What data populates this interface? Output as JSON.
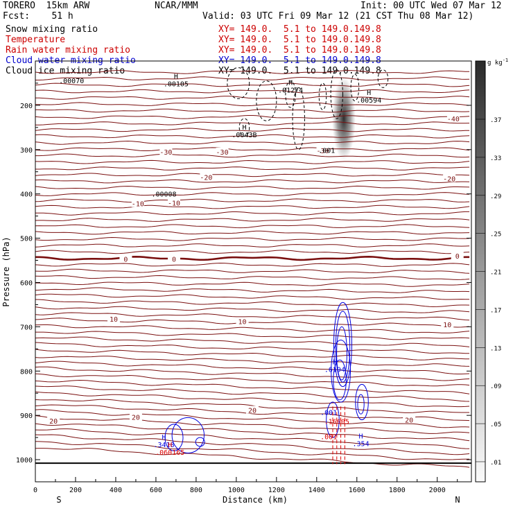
{
  "header": {
    "model": "TORERO  15km ARW",
    "center": "NCAR/MMM",
    "init": "Init: 00 UTC Wed 07 Mar 12",
    "fcst": "Fcst:    51 h",
    "valid": "Valid: 03 UTC Fri 09 Mar 12 (21 CST Thu 08 Mar 12)"
  },
  "legend": [
    {
      "label": "Snow mixing ratio",
      "xy": "",
      "color": "#000000"
    },
    {
      "label": "Temperature",
      "xy": "XY= 149.0.  5.1 to 149.0.149.8",
      "color": "#cc0000"
    },
    {
      "label": "Rain water mixing ratio",
      "xy": "XY= 149.0.  5.1 to 149.0.149.8",
      "color": "#cc0000"
    },
    {
      "label": "Cloud water mixing ratio",
      "xy": "XY= 149.0.  5.1 to 149.0.149.8",
      "color": "#0000cc"
    },
    {
      "label": "Cloud ice mixing ratio",
      "xy": "XY= 149.0.  5.1 to 149.0.149.8",
      "color": "#000000"
    }
  ],
  "legend_first_xy": "XY= 149.0.  5.1 to 149.0.149.8",
  "colors": {
    "temperature": "#7a0f0f",
    "rain": "#dd0000",
    "cloud_water": "#0000dd",
    "cloud_ice": "#000000",
    "snow_shade": "#333333"
  },
  "chart_data": {
    "type": "cross-section contour",
    "xlabel": "Distance (km)",
    "ylabel": "Pressure (hPa)",
    "x_ticks": [
      0,
      200,
      400,
      600,
      800,
      1000,
      1200,
      1400,
      1600,
      1800,
      2000
    ],
    "xlim": [
      0,
      2170
    ],
    "y_ticks": [
      200,
      300,
      400,
      500,
      600,
      700,
      800,
      900,
      1000
    ],
    "ylim": [
      1050,
      100
    ],
    "x_end_labels": {
      "left": "S",
      "right": "N"
    },
    "colorbar": {
      "unit": "g kg",
      "unit_exp": "-1",
      "ticks": [
        ".37",
        ".33",
        ".29",
        ".25",
        ".21",
        ".17",
        ".13",
        ".09",
        ".05",
        ".01"
      ]
    },
    "temperature_contours": [
      {
        "value": -40,
        "label_x": 2080,
        "p": 230
      },
      {
        "value": -30,
        "label_x": 650,
        "p": 305
      },
      {
        "value": -30,
        "label_x": 930,
        "p": 305
      },
      {
        "value": -30,
        "label_x": 1430,
        "p": 302
      },
      {
        "value": -20,
        "label_x": 850,
        "p": 362
      },
      {
        "value": -20,
        "label_x": 2060,
        "p": 365
      },
      {
        "value": -10,
        "label_x": 510,
        "p": 422
      },
      {
        "value": -10,
        "label_x": 690,
        "p": 420
      },
      {
        "value": 0,
        "label_x": 450,
        "p": 547
      },
      {
        "value": 0,
        "label_x": 690,
        "p": 547
      },
      {
        "value": 0,
        "label_x": 2100,
        "p": 540
      },
      {
        "value": 10,
        "label_x": 390,
        "p": 682
      },
      {
        "value": 10,
        "label_x": 1030,
        "p": 688
      },
      {
        "value": 10,
        "label_x": 2050,
        "p": 695
      },
      {
        "value": 20,
        "label_x": 90,
        "p": 912
      },
      {
        "value": 20,
        "label_x": 500,
        "p": 904
      },
      {
        "value": 20,
        "label_x": 1080,
        "p": 888
      },
      {
        "value": 20,
        "label_x": 1860,
        "p": 910
      }
    ],
    "maxima_labels": [
      {
        "field": "cloud_ice",
        "mark": "",
        "value": ".00070",
        "x": 180,
        "p": 136
      },
      {
        "field": "cloud_ice",
        "mark": "H",
        "value": ".00105",
        "x": 700,
        "p": 143
      },
      {
        "field": "cloud_ice",
        "mark": "H",
        "value": ".01274",
        "x": 1270,
        "p": 157
      },
      {
        "field": "cloud_ice",
        "mark": "H",
        "value": ".00594",
        "x": 1660,
        "p": 180
      },
      {
        "field": "cloud_ice",
        "mark": "H",
        "value": ".0043B",
        "x": 1040,
        "p": 258
      },
      {
        "field": "cloud_ice",
        "mark": "",
        "value": ".001",
        "x": 1450,
        "p": 293
      },
      {
        "field": "cloud_ice",
        "mark": "",
        "value": ".00008",
        "x": 640,
        "p": 392
      },
      {
        "field": "cloud_water",
        "mark": "H",
        "value": ".6194",
        "x": 1490,
        "p": 788
      },
      {
        "field": "cloud_water",
        "mark": "",
        "value": ".001",
        "x": 1460,
        "p": 885
      },
      {
        "field": "rain",
        "mark": "",
        "value": ".16605",
        "x": 1500,
        "p": 905
      },
      {
        "field": "cloud_water",
        "mark": "H",
        "value": ".354",
        "x": 1620,
        "p": 955
      },
      {
        "field": "rain",
        "mark": "",
        "value": ".001",
        "x": 1460,
        "p": 940
      },
      {
        "field": "cloud_water",
        "mark": "H",
        "value": ".3418",
        "x": 640,
        "p": 958
      },
      {
        "field": "rain",
        "mark": "H",
        "value": ".060165",
        "x": 670,
        "p": 975
      }
    ]
  }
}
